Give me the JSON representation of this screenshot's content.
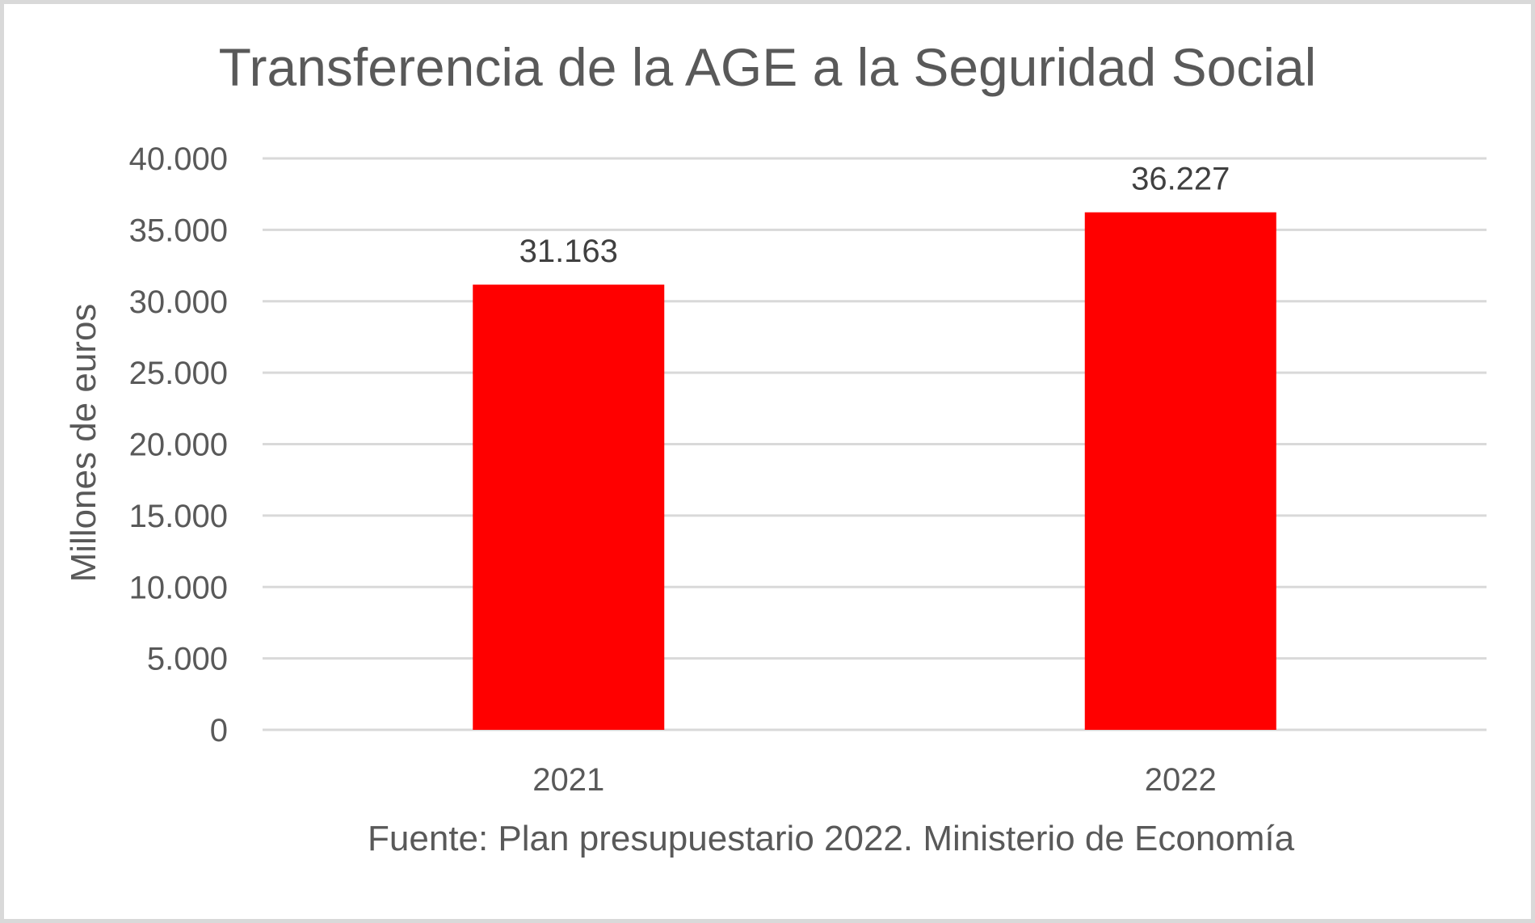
{
  "chart_data": {
    "type": "bar",
    "title": "Transferencia de la AGE a la Seguridad Social",
    "xlabel": "",
    "ylabel": "Millones de euros",
    "categories": [
      "2021",
      "2022"
    ],
    "values": [
      31163,
      36227
    ],
    "value_labels": [
      "31.163",
      "36.227"
    ],
    "ylim": [
      0,
      40000
    ],
    "yticks": [
      0,
      5000,
      10000,
      15000,
      20000,
      25000,
      30000,
      35000,
      40000
    ],
    "ytick_labels": [
      "0",
      "5.000",
      "10.000",
      "15.000",
      "20.000",
      "25.000",
      "30.000",
      "35.000",
      "40.000"
    ],
    "grid": true,
    "legend": "none",
    "bar_color": "#ff0000",
    "source": "Fuente: Plan presupuestario 2022. Ministerio de Economía"
  }
}
